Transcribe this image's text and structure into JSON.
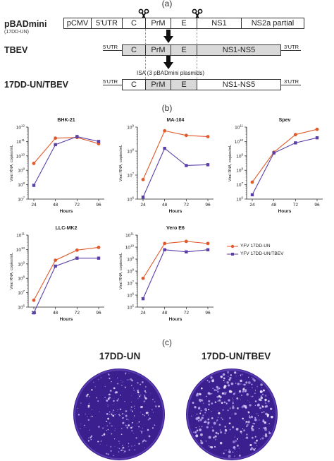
{
  "panel_labels": {
    "a": "(a)",
    "b": "(b)",
    "c": "(c)"
  },
  "construct": {
    "row1": {
      "label": "pBADmini",
      "sublabel": "(17DD-UN)",
      "segments": [
        "pCMV",
        "5'UTR",
        "C",
        "PrM",
        "E",
        "NS1",
        "NS2a partial"
      ]
    },
    "row2": {
      "label": "TBEV",
      "utr5": "5'UTR",
      "utr3": "3'UTR",
      "segments": [
        "C",
        "PrM",
        "E",
        "NS1-NS5"
      ]
    },
    "isa_text": "ISA (3 pBADmini plasmids)",
    "row3": {
      "label": "17DD-UN/TBEV",
      "utr5": "5'UTR",
      "utr3": "3'UTR",
      "segments": [
        "C",
        "PrM",
        "E",
        "NS1-NS5"
      ]
    },
    "colors": {
      "white": "#ffffff",
      "grey": "#d9d9d9",
      "prm_e_shade": "#d9d9d9"
    }
  },
  "chart_data": [
    {
      "type": "line",
      "title": "BHK-21",
      "xlabel": "Hours",
      "ylabel": "Viral RNA, copies/mL",
      "x": [
        24,
        48,
        72,
        96
      ],
      "log_scale": true,
      "ylim_exp": [
        7,
        12
      ],
      "series": [
        {
          "name": "YFV 17DD-UN",
          "values": [
            3000000000.0,
            170000000000.0,
            190000000000.0,
            70000000000.0
          ]
        },
        {
          "name": "YFV 17DD-UN/TBEV",
          "values": [
            90000000.0,
            60000000000.0,
            220000000000.0,
            100000000000.0
          ]
        }
      ]
    },
    {
      "type": "line",
      "title": "MA-104",
      "xlabel": "Hours",
      "ylabel": "Viral RNA, copies/mL",
      "x": [
        24,
        48,
        72,
        96
      ],
      "log_scale": true,
      "ylim_exp": [
        6,
        9
      ],
      "series": [
        {
          "name": "YFV 17DD-UN",
          "values": [
            6500000.0,
            700000000.0,
            450000000.0,
            400000000.0
          ]
        },
        {
          "name": "YFV 17DD-UN/TBEV",
          "values": [
            1200000.0,
            130000000.0,
            25000000.0,
            27000000.0
          ]
        }
      ]
    },
    {
      "type": "line",
      "title": "Spev",
      "xlabel": "Hours",
      "ylabel": "Viral RNA, copies/mL",
      "x": [
        24,
        48,
        72,
        96
      ],
      "log_scale": true,
      "ylim_exp": [
        6,
        11
      ],
      "series": [
        {
          "name": "YFV 17DD-UN",
          "values": [
            15000000.0,
            1800000000.0,
            30000000000.0,
            70000000000.0
          ]
        },
        {
          "name": "YFV 17DD-UN/TBEV",
          "values": [
            2000000.0,
            1600000000.0,
            8000000000.0,
            18000000000.0
          ]
        }
      ]
    },
    {
      "type": "line",
      "title": "LLC-MK2",
      "xlabel": "Hours",
      "ylabel": "Viral RNA, copies/mL",
      "x": [
        24,
        48,
        72,
        96
      ],
      "log_scale": true,
      "ylim_exp": [
        6,
        11
      ],
      "series": [
        {
          "name": "YFV 17DD-UN",
          "values": [
            3000000.0,
            1800000000.0,
            9000000000.0,
            14000000000.0
          ]
        },
        {
          "name": "YFV 17DD-UN/TBEV",
          "values": [
            400000.0,
            700000000.0,
            2500000000.0,
            2500000000.0
          ]
        }
      ]
    },
    {
      "type": "line",
      "title": "Vero E6",
      "xlabel": "Hours",
      "ylabel": "Viral RNA, copies/mL",
      "x": [
        24,
        48,
        72,
        96
      ],
      "log_scale": true,
      "ylim_exp": [
        5,
        11
      ],
      "series": [
        {
          "name": "YFV 17DD-UN",
          "values": [
            25000000.0,
            20000000000.0,
            30000000000.0,
            20000000000.0
          ]
        },
        {
          "name": "YFV 17DD-UN/TBEV",
          "values": [
            500000.0,
            6000000000.0,
            4000000000.0,
            6000000000.0
          ]
        }
      ]
    }
  ],
  "legend": {
    "items": [
      {
        "name": "YFV 17DD-UN",
        "color": "#e05a2b"
      },
      {
        "name": "YFV 17DD-UN/TBEV",
        "color": "#5b3fa6"
      }
    ]
  },
  "series_colors": {
    "s1": "#e05a2b",
    "s2": "#5b3fa6"
  },
  "plates": {
    "left_title": "17DD-UN",
    "right_title": "17DD-UN/TBEV",
    "dish_color": "#3b1f8f"
  }
}
